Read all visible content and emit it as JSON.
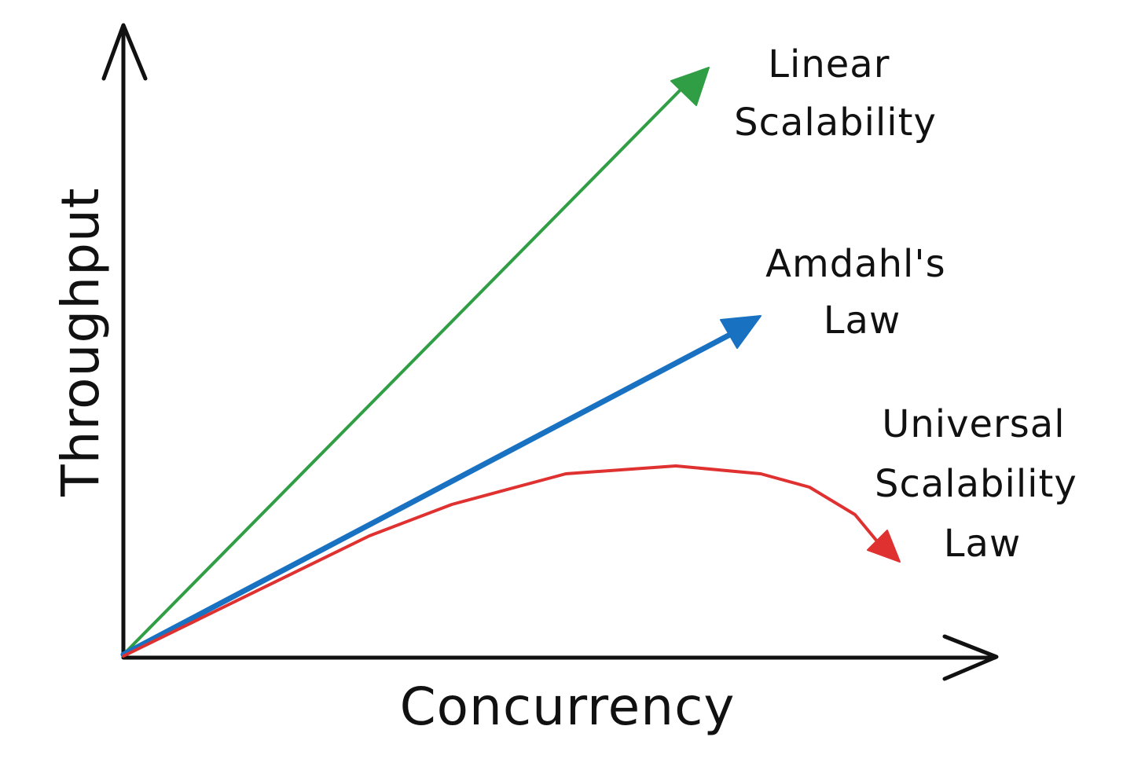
{
  "axes": {
    "x_title": "Concurrency",
    "y_title": "Throughput",
    "stroke_color": "#111111"
  },
  "curves": [
    {
      "key": "linear",
      "label_lines": [
        "Linear",
        "Scalability"
      ],
      "color": "#2f9e44",
      "shape": "straight-arrow"
    },
    {
      "key": "amdahl",
      "label_lines": [
        "Amdahl's",
        "Law"
      ],
      "color": "#1971c2",
      "shape": "straight-arrow"
    },
    {
      "key": "usl",
      "label_lines": [
        "Universal",
        "Scalability",
        "Law"
      ],
      "color": "#e03131",
      "shape": "rise-then-fall-arrow"
    }
  ]
}
